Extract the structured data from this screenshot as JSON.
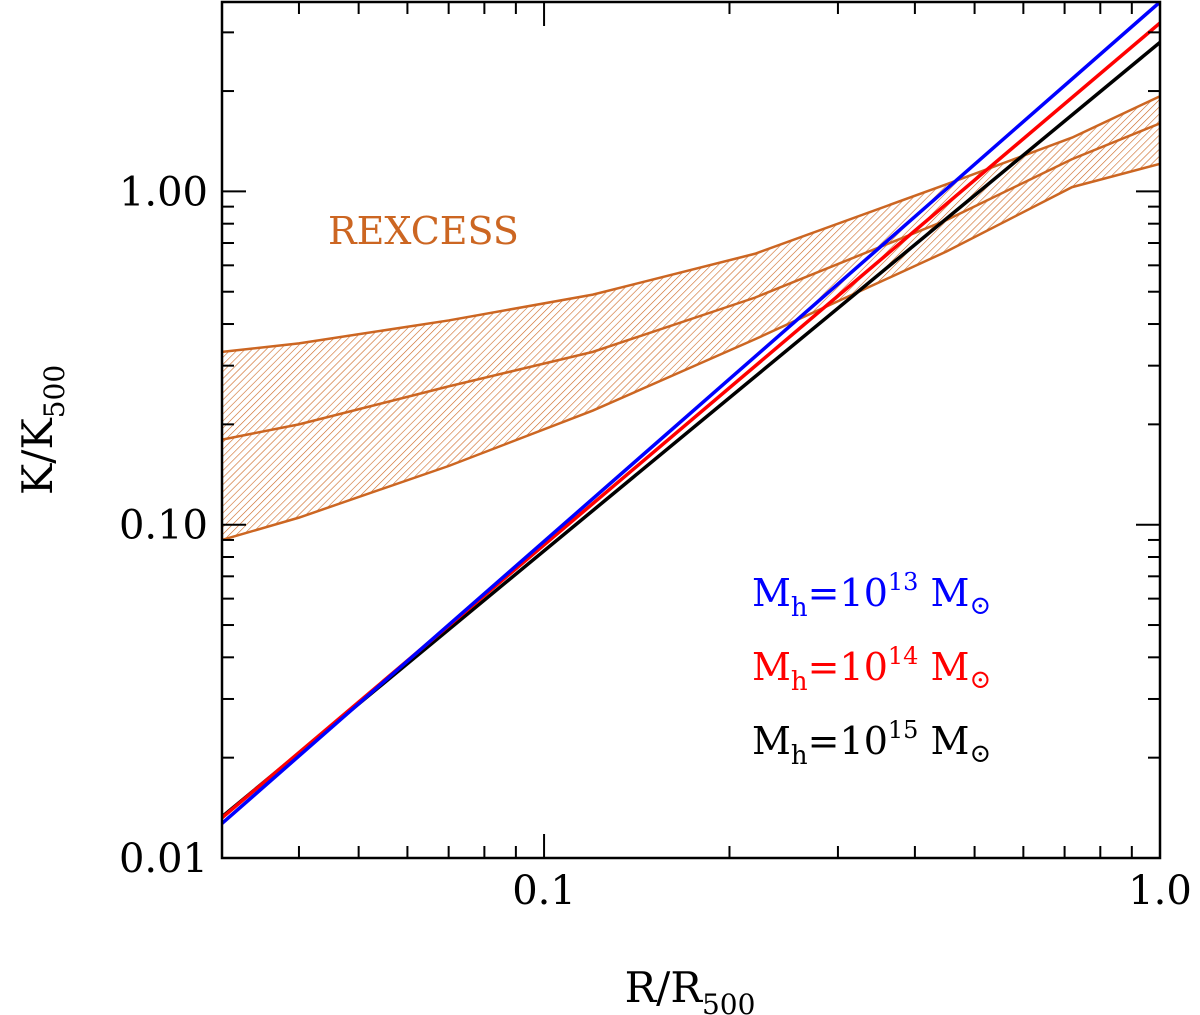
{
  "chart_data": {
    "type": "line",
    "title": "",
    "xlabel": {
      "main": "R/R",
      "sub": "500"
    },
    "ylabel": {
      "main": "K/K",
      "sub": "500"
    },
    "xscale": "log",
    "yscale": "log",
    "xlim": [
      0.03,
      1.0
    ],
    "ylim": [
      0.01,
      3.7
    ],
    "xticks": [
      {
        "value": 0.1,
        "label": "0.1"
      },
      {
        "value": 1.0,
        "label": "1.0"
      }
    ],
    "yticks": [
      {
        "value": 0.01,
        "label": "0.01"
      },
      {
        "value": 0.1,
        "label": "0.10"
      },
      {
        "value": 1.0,
        "label": "1.00"
      }
    ],
    "series": [
      {
        "name": "Mh=10^13 Msun",
        "color": "#0000ff",
        "x": [
          0.03,
          1.0
        ],
        "y": [
          0.0127,
          3.7
        ]
      },
      {
        "name": "Mh=10^14 Msun",
        "color": "#ff0000",
        "x": [
          0.03,
          1.0
        ],
        "y": [
          0.0132,
          3.2
        ]
      },
      {
        "name": "Mh=10^15 Msun",
        "color": "#000000",
        "x": [
          0.03,
          1.0
        ],
        "y": [
          0.0133,
          2.8
        ]
      }
    ],
    "band": {
      "label": "REXCESS",
      "color": "#cc6622",
      "x": [
        0.03,
        0.04,
        0.07,
        0.12,
        0.22,
        0.45,
        0.72,
        1.0
      ],
      "upper": [
        0.33,
        0.35,
        0.41,
        0.49,
        0.65,
        1.05,
        1.45,
        1.93
      ],
      "median": [
        0.18,
        0.2,
        0.26,
        0.33,
        0.48,
        0.82,
        1.25,
        1.6
      ],
      "lower": [
        0.09,
        0.105,
        0.15,
        0.22,
        0.36,
        0.66,
        1.03,
        1.21
      ]
    },
    "legend": {
      "position": "bottom-right",
      "entries": [
        {
          "prefix": "M",
          "sub": "h",
          "eq": "=10",
          "exp": "13",
          "unit": "M",
          "symbol": "⊙",
          "color": "#0000ff"
        },
        {
          "prefix": "M",
          "sub": "h",
          "eq": "=10",
          "exp": "14",
          "unit": "M",
          "symbol": "⊙",
          "color": "#ff0000"
        },
        {
          "prefix": "M",
          "sub": "h",
          "eq": "=10",
          "exp": "15",
          "unit": "M",
          "symbol": "⊙",
          "color": "#000000"
        }
      ]
    }
  }
}
